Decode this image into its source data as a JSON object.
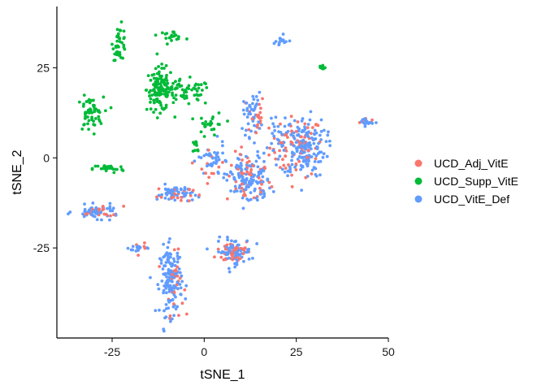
{
  "chart_data": {
    "type": "scatter",
    "xlabel": "tSNE_1",
    "ylabel": "tSNE_2",
    "xlim": [
      -40,
      50
    ],
    "ylim": [
      -50,
      42
    ],
    "x_ticks": [
      -25,
      0,
      25,
      50
    ],
    "y_ticks": [
      -25,
      0,
      25
    ],
    "x_tick_labels": [
      "-25",
      "0",
      "25",
      "50"
    ],
    "y_tick_labels": [
      "-25",
      "0",
      "25"
    ],
    "grid": false,
    "legend_position": "right",
    "series": [
      {
        "name": "UCD_Adj_VitE",
        "color": "#F8766D",
        "clusters": [
          {
            "cx": 25,
            "cy": 3,
            "sx": 6,
            "sy": 7,
            "n": 70
          },
          {
            "cx": 12,
            "cy": -6,
            "sx": 5,
            "sy": 6,
            "n": 45
          },
          {
            "cx": 14,
            "cy": 12,
            "sx": 2,
            "sy": 5,
            "n": 18
          },
          {
            "cx": 8,
            "cy": -26,
            "sx": 4,
            "sy": 3,
            "n": 40
          },
          {
            "cx": -8,
            "cy": -35,
            "sx": 2,
            "sy": 7,
            "n": 30
          },
          {
            "cx": -8,
            "cy": -10,
            "sx": 4,
            "sy": 2,
            "n": 22
          },
          {
            "cx": -28,
            "cy": -15,
            "sx": 5,
            "sy": 1.5,
            "n": 18
          },
          {
            "cx": 2,
            "cy": -2,
            "sx": 3,
            "sy": 4,
            "n": 12
          },
          {
            "cx": 44,
            "cy": 10,
            "sx": 1.5,
            "sy": 1,
            "n": 6
          },
          {
            "cx": -17,
            "cy": -25,
            "sx": 1.5,
            "sy": 1,
            "n": 5
          }
        ]
      },
      {
        "name": "UCD_Supp_VitE",
        "color": "#00BA38",
        "clusters": [
          {
            "cx": -12,
            "cy": 19,
            "sx": 3,
            "sy": 5,
            "n": 120
          },
          {
            "cx": -5,
            "cy": 18,
            "sx": 6,
            "sy": 3,
            "n": 60
          },
          {
            "cx": 2,
            "cy": 9,
            "sx": 3,
            "sy": 3,
            "n": 25
          },
          {
            "cx": -23,
            "cy": 32,
            "sx": 1.5,
            "sy": 4,
            "n": 40
          },
          {
            "cx": -9,
            "cy": 34,
            "sx": 3,
            "sy": 1,
            "n": 22
          },
          {
            "cx": -31,
            "cy": 12,
            "sx": 3,
            "sy": 4,
            "n": 55
          },
          {
            "cx": -26,
            "cy": -3,
            "sx": 3.5,
            "sy": 1,
            "n": 30
          },
          {
            "cx": 32,
            "cy": 25,
            "sx": 0.8,
            "sy": 0.8,
            "n": 10
          },
          {
            "cx": -2,
            "cy": 3,
            "sx": 1,
            "sy": 2,
            "n": 10
          }
        ]
      },
      {
        "name": "UCD_VitE_Def",
        "color": "#619CFF",
        "clusters": [
          {
            "cx": 27,
            "cy": 3,
            "sx": 5,
            "sy": 7,
            "n": 160
          },
          {
            "cx": 12,
            "cy": -6,
            "sx": 5,
            "sy": 6,
            "n": 120
          },
          {
            "cx": 13,
            "cy": 12,
            "sx": 2,
            "sy": 5,
            "n": 45
          },
          {
            "cx": 8,
            "cy": -26,
            "sx": 4,
            "sy": 3,
            "n": 70
          },
          {
            "cx": -9,
            "cy": -34,
            "sx": 2.5,
            "sy": 8,
            "n": 140
          },
          {
            "cx": -8,
            "cy": -10,
            "sx": 4,
            "sy": 2,
            "n": 50
          },
          {
            "cx": -29,
            "cy": -15,
            "sx": 5,
            "sy": 1.5,
            "n": 55
          },
          {
            "cx": 2,
            "cy": -1,
            "sx": 3,
            "sy": 4,
            "n": 35
          },
          {
            "cx": 44,
            "cy": 10,
            "sx": 1.5,
            "sy": 1,
            "n": 20
          },
          {
            "cx": 21,
            "cy": 32,
            "sx": 2.5,
            "sy": 1.5,
            "n": 15
          },
          {
            "cx": -18,
            "cy": -25,
            "sx": 2,
            "sy": 1,
            "n": 15
          },
          {
            "cx": 20,
            "cy": 5,
            "sx": 2,
            "sy": 4,
            "n": 25
          }
        ]
      }
    ]
  }
}
